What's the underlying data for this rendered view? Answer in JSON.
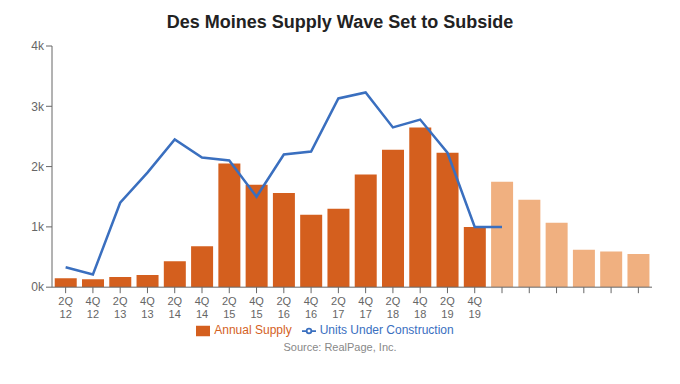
{
  "chart_data": {
    "type": "bar",
    "title": "Des Moines Supply Wave Set to Subside",
    "annotations": [
      "Source: RealPage, Inc."
    ],
    "categories": [
      "2Q\n12",
      "4Q\n12",
      "2Q\n13",
      "4Q\n13",
      "2Q\n14",
      "4Q\n14",
      "2Q\n15",
      "4Q\n15",
      "2Q\n16",
      "4Q\n16",
      "2Q\n17",
      "4Q\n17",
      "2Q\n18",
      "4Q\n18",
      "2Q\n19",
      "4Q\n19",
      null,
      null,
      null,
      null,
      null,
      null
    ],
    "series": [
      {
        "name": "Annual Supply",
        "type": "bar",
        "color": "#d45f1e",
        "colors": [
          "#d45f1e",
          "#d45f1e",
          "#d45f1e",
          "#d45f1e",
          "#d45f1e",
          "#d45f1e",
          "#d45f1e",
          "#d45f1e",
          "#d45f1e",
          "#d45f1e",
          "#d45f1e",
          "#d45f1e",
          "#d45f1e",
          "#d45f1e",
          "#d45f1e",
          "#d45f1e",
          "#f0b080",
          "#f0b080",
          "#f0b080",
          "#f0b080",
          "#f0b080",
          "#f0b080"
        ],
        "values": [
          150,
          130,
          170,
          200,
          430,
          680,
          2050,
          1700,
          1560,
          1200,
          1300,
          1870,
          2280,
          2650,
          2230,
          1000,
          1750,
          1450,
          1070,
          620,
          590,
          550
        ]
      },
      {
        "name": "Units Under Construction",
        "type": "line",
        "color": "#3a6fbf",
        "values": [
          330,
          210,
          1400,
          1900,
          2450,
          2150,
          2100,
          1500,
          2200,
          2250,
          3130,
          3230,
          2650,
          2780,
          2230,
          1000,
          1000,
          null,
          null,
          null,
          null,
          null
        ]
      }
    ],
    "ylim": [
      0,
      4000
    ],
    "yticks": [
      {
        "value": 0,
        "label": "0k"
      },
      {
        "value": 1000,
        "label": "1k"
      },
      {
        "value": 2000,
        "label": "2k"
      },
      {
        "value": 3000,
        "label": "3k"
      },
      {
        "value": 4000,
        "label": "4k"
      }
    ],
    "grid": false,
    "legend": "bottom"
  }
}
